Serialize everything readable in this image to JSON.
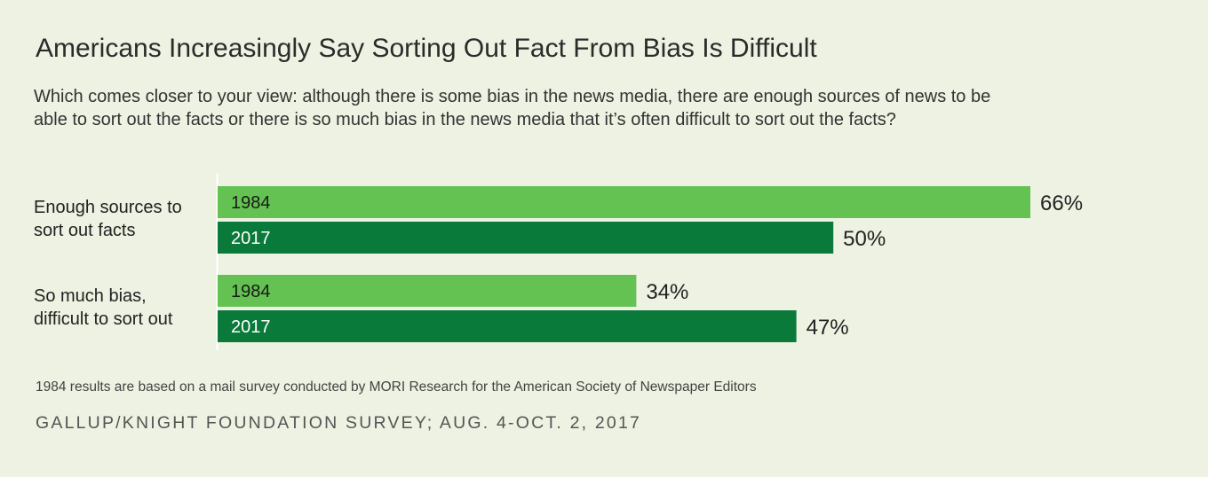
{
  "title": "Americans Increasingly Say Sorting Out Fact From Bias Is Difficult",
  "subtitle": "Which comes closer to your view:  although there is some bias in the news media, there are enough sources of news to be able to sort out the facts or there is so much bias in the news media that it’s often difficult to sort out the facts?",
  "note": "1984 results are based on a mail survey conducted by MORI Research for the American Society of Newspaper Editors",
  "source": "GALLUP/KNIGHT FOUNDATION SURVEY; AUG. 4-OCT. 2, 2017",
  "colors": {
    "y1984": "#63c251",
    "y2017": "#0a7a3a",
    "background": "#edf2e2"
  },
  "chart_data": {
    "type": "bar",
    "orientation": "horizontal",
    "categories": [
      {
        "lines": [
          "Enough sources to",
          "sort out facts"
        ]
      },
      {
        "lines": [
          "So much bias,",
          "difficult to sort out"
        ]
      }
    ],
    "series": [
      {
        "name": "1984",
        "values": [
          66,
          34
        ]
      },
      {
        "name": "2017",
        "values": [
          50,
          47
        ]
      }
    ],
    "value_suffix": "%",
    "xlim": [
      0,
      100
    ],
    "grid": false
  }
}
